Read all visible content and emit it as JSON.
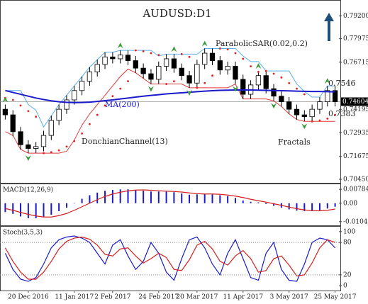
{
  "chart_data": [
    {
      "type": "candlestick",
      "title": "AUDUSD:D1",
      "categories": [
        null,
        null,
        null,
        "20 Dec 2016",
        null,
        null,
        null,
        null,
        null,
        "11 Jan 2017",
        null,
        null,
        null,
        null,
        "2 Feb 2017",
        null,
        null,
        null,
        null,
        null,
        "24 Feb 2017",
        null,
        null,
        null,
        null,
        "20 Mar 2017",
        null,
        null,
        null,
        null,
        null,
        "11 Apr 2017",
        null,
        null,
        null,
        null,
        null,
        "3 May 2017",
        null,
        null,
        null,
        null,
        null,
        "25 May 2017"
      ],
      "open": [
        0.742,
        0.739,
        0.73,
        0.723,
        0.721,
        0.722,
        0.728,
        0.736,
        0.742,
        0.747,
        0.752,
        0.757,
        0.762,
        0.766,
        0.77,
        0.769,
        0.771,
        0.768,
        0.764,
        0.761,
        0.758,
        0.765,
        0.769,
        0.764,
        0.76,
        0.756,
        0.766,
        0.772,
        0.768,
        0.763,
        0.765,
        0.758,
        0.75,
        0.755,
        0.76,
        0.753,
        0.749,
        0.746,
        0.742,
        0.739,
        0.738,
        0.742,
        0.746,
        0.752
      ],
      "high": [
        0.7445,
        0.7415,
        0.7325,
        0.7255,
        0.7245,
        0.7305,
        0.7385,
        0.7445,
        0.7495,
        0.7545,
        0.7595,
        0.7645,
        0.7685,
        0.7725,
        0.7725,
        0.7735,
        0.7735,
        0.7705,
        0.7665,
        0.7635,
        0.7675,
        0.7715,
        0.7715,
        0.7665,
        0.7625,
        0.7685,
        0.7745,
        0.7745,
        0.7705,
        0.7675,
        0.7675,
        0.7605,
        0.7575,
        0.7625,
        0.7625,
        0.7555,
        0.7515,
        0.7485,
        0.7445,
        0.7415,
        0.7445,
        0.7485,
        0.7545,
        0.7545
      ],
      "low": [
        0.7365,
        0.7275,
        0.7205,
        0.7185,
        0.7185,
        0.7195,
        0.7255,
        0.7335,
        0.7395,
        0.7445,
        0.7495,
        0.7545,
        0.7595,
        0.7635,
        0.7665,
        0.7665,
        0.7655,
        0.7615,
        0.7585,
        0.7555,
        0.7555,
        0.7625,
        0.7615,
        0.7575,
        0.7535,
        0.7535,
        0.7635,
        0.7655,
        0.7605,
        0.7605,
        0.7555,
        0.7475,
        0.7475,
        0.7525,
        0.7505,
        0.7465,
        0.7435,
        0.7395,
        0.7365,
        0.7355,
        0.7355,
        0.7395,
        0.7435,
        0.7435
      ],
      "close": [
        0.739,
        0.73,
        0.723,
        0.721,
        0.722,
        0.728,
        0.736,
        0.742,
        0.747,
        0.752,
        0.757,
        0.762,
        0.766,
        0.77,
        0.769,
        0.771,
        0.768,
        0.764,
        0.761,
        0.758,
        0.765,
        0.769,
        0.764,
        0.76,
        0.756,
        0.766,
        0.772,
        0.768,
        0.763,
        0.765,
        0.758,
        0.75,
        0.755,
        0.76,
        0.753,
        0.749,
        0.746,
        0.742,
        0.739,
        0.738,
        0.742,
        0.746,
        0.752,
        0.746
      ],
      "up_color": "#ffffff",
      "down_color": "#000000",
      "ylim": [
        0.703,
        0.7997
      ],
      "yticks": [
        {
          "value": 0.792,
          "label": "0.79200"
        },
        0.77975,
        0.76715,
        0.74195,
        0.72935,
        0.71675,
        {
          "value": 0.7045,
          "label": "0.70450"
        }
      ],
      "ma": {
        "name": "MA(200)",
        "color": "#1a1acc",
        "values": [
          0.752,
          0.751,
          0.75,
          0.749,
          0.748,
          0.7472,
          0.7465,
          0.746,
          0.7457,
          0.7455,
          0.7456,
          0.7458,
          0.7462,
          0.7466,
          0.747,
          0.7475,
          0.748,
          0.7485,
          0.749,
          0.7494,
          0.7498,
          0.7502,
          0.7505,
          0.7508,
          0.7511,
          0.7514,
          0.7517,
          0.7519,
          0.7521,
          0.7522,
          0.7523,
          0.7523,
          0.7523,
          0.7522,
          0.7521,
          0.752,
          0.7519,
          0.7518,
          0.7517,
          0.7516,
          0.7515,
          0.7515,
          0.7514,
          0.7513
        ]
      },
      "donchian": {
        "name": "DonchianChannel(13)",
        "upper_color": "#5aaee8",
        "lower_color": "#e03a3a",
        "upper": [
          0.752,
          0.752,
          0.752,
          0.7445,
          0.7415,
          0.7325,
          0.7385,
          0.7445,
          0.7495,
          0.7545,
          0.7595,
          0.7645,
          0.7685,
          0.7725,
          0.7725,
          0.7735,
          0.7735,
          0.7735,
          0.7735,
          0.7735,
          0.7705,
          0.7715,
          0.7715,
          0.7715,
          0.7715,
          0.7715,
          0.7745,
          0.7745,
          0.7745,
          0.7745,
          0.7745,
          0.7705,
          0.7675,
          0.7675,
          0.7625,
          0.7625,
          0.7625,
          0.7625,
          0.7555,
          0.7515,
          0.7485,
          0.7485,
          0.7545,
          0.7545
        ],
        "lower": [
          0.73,
          0.728,
          0.7205,
          0.7185,
          0.7185,
          0.7185,
          0.7185,
          0.7185,
          0.7195,
          0.7255,
          0.7335,
          0.7395,
          0.7445,
          0.7495,
          0.7545,
          0.7595,
          0.7635,
          0.7615,
          0.7585,
          0.7555,
          0.7555,
          0.7555,
          0.7555,
          0.7555,
          0.7535,
          0.7535,
          0.7535,
          0.7535,
          0.7535,
          0.7535,
          0.7555,
          0.7475,
          0.7475,
          0.7475,
          0.7475,
          0.7465,
          0.7435,
          0.7395,
          0.7365,
          0.7355,
          0.7355,
          0.7355,
          0.7355,
          0.7355
        ]
      },
      "sar": {
        "name": "ParabolicSAR(0.02,0.2)",
        "color": "#e02020",
        "values": [
          0.748,
          0.747,
          0.744,
          0.741,
          0.738,
          0.7185,
          0.719,
          0.72,
          0.722,
          0.725,
          0.729,
          0.734,
          0.739,
          0.744,
          0.749,
          0.753,
          0.757,
          0.7735,
          0.773,
          0.772,
          0.771,
          0.7555,
          0.757,
          0.7715,
          0.77,
          0.7535,
          0.756,
          0.76,
          0.7745,
          0.774,
          0.772,
          0.769,
          0.765,
          0.762,
          0.7625,
          0.761,
          0.759,
          0.756,
          0.753,
          0.75,
          0.7355,
          0.736,
          0.737,
          0.739
        ]
      },
      "fractals": {
        "name": "Fractals",
        "color": "#3a9a3a",
        "up": [
          0.7445,
          null,
          null,
          null,
          null,
          null,
          null,
          null,
          null,
          null,
          null,
          null,
          null,
          null,
          null,
          0.7735,
          null,
          null,
          null,
          null,
          null,
          null,
          0.7715,
          null,
          null,
          null,
          0.7745,
          null,
          null,
          null,
          null,
          null,
          null,
          0.7625,
          null,
          null,
          null,
          null,
          null,
          null,
          null,
          null,
          0.7545,
          null
        ],
        "down": [
          null,
          null,
          null,
          0.7185,
          null,
          null,
          null,
          null,
          null,
          null,
          null,
          null,
          null,
          null,
          null,
          null,
          null,
          null,
          null,
          0.7555,
          null,
          null,
          null,
          null,
          0.7535,
          null,
          null,
          null,
          null,
          null,
          0.7555,
          null,
          null,
          null,
          null,
          0.7465,
          null,
          null,
          null,
          0.7355,
          null,
          null,
          null,
          null
        ]
      },
      "levels": [
        {
          "value": 0.7546,
          "label": "0.7546"
        },
        {
          "value": 0.7383,
          "label": "0.7383"
        }
      ],
      "last_price": {
        "value": 0.74604,
        "label": "0.74604"
      }
    },
    {
      "type": "macd",
      "title": "MACD(12,26,9)",
      "ylim": [
        -0.0125,
        0.0107
      ],
      "yticks": [
        0.00784,
        {
          "value": 0,
          "label": "0.00"
        },
        -0.01042
      ],
      "series": [
        {
          "name": "histogram",
          "color": "#1a1acc",
          "values": [
            -0.005,
            -0.006,
            -0.0075,
            -0.0085,
            -0.0085,
            -0.0078,
            -0.0065,
            -0.0045,
            -0.0025,
            0.0,
            0.0025,
            0.0045,
            0.006,
            0.007,
            0.0075,
            0.0078,
            0.0078,
            0.0075,
            0.007,
            0.0066,
            0.0066,
            0.0065,
            0.0062,
            0.0055,
            0.0048,
            0.005,
            0.0052,
            0.005,
            0.0045,
            0.004,
            0.003,
            0.0015,
            0.0008,
            0.0005,
            -0.0005,
            -0.0015,
            -0.0025,
            -0.0035,
            -0.0042,
            -0.0045,
            -0.0045,
            -0.004,
            -0.003,
            -0.002
          ]
        },
        {
          "name": "signal",
          "color": "#d42020",
          "values": [
            -0.003,
            -0.004,
            -0.0052,
            -0.0063,
            -0.0072,
            -0.0078,
            -0.0078,
            -0.007,
            -0.0058,
            -0.004,
            -0.002,
            0.0,
            0.002,
            0.0038,
            0.0052,
            0.0062,
            0.007,
            0.0074,
            0.0075,
            0.0073,
            0.007,
            0.0068,
            0.0066,
            0.0063,
            0.0058,
            0.0054,
            0.0052,
            0.0052,
            0.005,
            0.0046,
            0.004,
            0.0032,
            0.0022,
            0.0014,
            0.0006,
            -0.0003,
            -0.0012,
            -0.0022,
            -0.0031,
            -0.0038,
            -0.0042,
            -0.0043,
            -0.004,
            -0.0033
          ]
        }
      ]
    },
    {
      "type": "stoch",
      "title": "Stoch(3,5,3)",
      "ylim": [
        -9,
        109
      ],
      "yticks": [
        100,
        80,
        20,
        0
      ],
      "grid_levels": [
        80,
        20
      ],
      "series": [
        {
          "name": "%K",
          "color": "#1a1acc",
          "values": [
            60,
            30,
            12,
            8,
            15,
            40,
            70,
            85,
            90,
            92,
            88,
            80,
            60,
            40,
            75,
            85,
            55,
            30,
            45,
            80,
            60,
            25,
            10,
            50,
            85,
            90,
            70,
            40,
            20,
            60,
            85,
            50,
            15,
            10,
            60,
            80,
            30,
            10,
            8,
            40,
            80,
            88,
            85,
            70
          ]
        },
        {
          "name": "%D",
          "color": "#d42020",
          "values": [
            70,
            45,
            25,
            12,
            12,
            25,
            45,
            68,
            82,
            88,
            90,
            86,
            75,
            58,
            55,
            68,
            70,
            55,
            42,
            50,
            60,
            52,
            30,
            28,
            48,
            75,
            82,
            68,
            45,
            38,
            55,
            65,
            50,
            25,
            28,
            50,
            55,
            38,
            18,
            20,
            42,
            70,
            85,
            80
          ]
        }
      ]
    }
  ]
}
